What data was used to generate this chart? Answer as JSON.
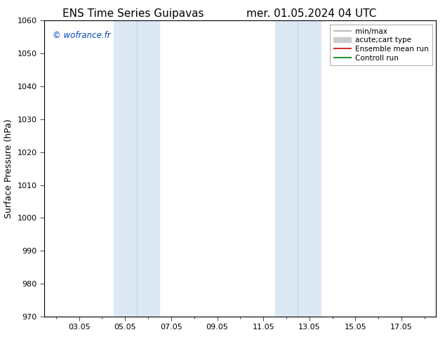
{
  "title_left": "ENS Time Series Guipavas",
  "title_right": "mer. 01.05.2024 04 UTC",
  "ylabel": "Surface Pressure (hPa)",
  "ylim": [
    970,
    1060
  ],
  "yticks": [
    970,
    980,
    990,
    1000,
    1010,
    1020,
    1030,
    1040,
    1050,
    1060
  ],
  "xtick_labels": [
    "03.05",
    "05.05",
    "07.05",
    "09.05",
    "11.05",
    "13.05",
    "15.05",
    "17.05"
  ],
  "xtick_major_positions": [
    2,
    4,
    6,
    8,
    10,
    12,
    14,
    16
  ],
  "xlim": [
    0.5,
    17.5
  ],
  "shaded_regions": [
    {
      "xmin": 3.5,
      "xmax": 5.5,
      "color": "#dce9f5"
    },
    {
      "xmin": 10.5,
      "xmax": 12.5,
      "color": "#dce9f5"
    }
  ],
  "shade_dividers": [
    4.5,
    11.5
  ],
  "background_color": "#ffffff",
  "watermark": "© wofrance.fr",
  "watermark_color": "#0044bb",
  "legend_entries": [
    {
      "label": "min/max",
      "color": "#aaaaaa",
      "linewidth": 1.2
    },
    {
      "label": "acute;cart type",
      "color": "#cccccc",
      "linewidth": 6
    },
    {
      "label": "Ensemble mean run",
      "color": "#cc0000",
      "linewidth": 1.2
    },
    {
      "label": "Controll run",
      "color": "#007700",
      "linewidth": 1.2
    }
  ],
  "figsize": [
    6.34,
    4.9
  ],
  "dpi": 100,
  "title_fontsize": 11,
  "ylabel_fontsize": 9,
  "tick_fontsize": 8,
  "legend_fontsize": 7.5
}
